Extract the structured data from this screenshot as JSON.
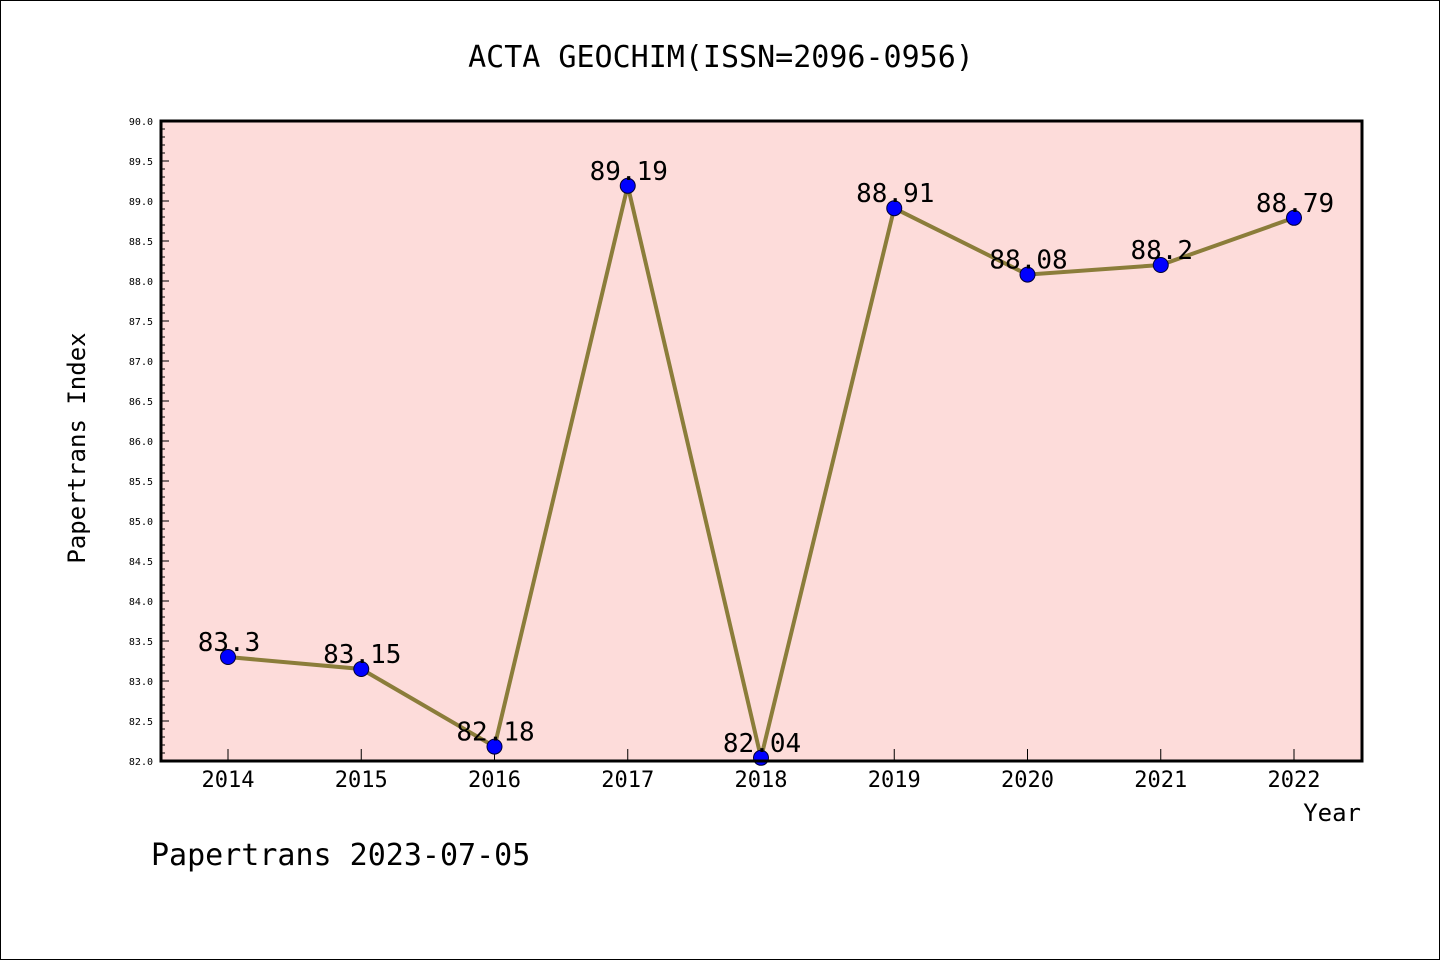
{
  "chart_data": {
    "type": "line",
    "title": "ACTA GEOCHIM(ISSN=2096-0956)",
    "xlabel": "Year",
    "ylabel": "Papertrans Index",
    "categories": [
      "2014",
      "2015",
      "2016",
      "2017",
      "2018",
      "2019",
      "2020",
      "2021",
      "2022"
    ],
    "values": [
      83.3,
      83.15,
      82.18,
      89.19,
      82.04,
      88.91,
      88.08,
      88.2,
      88.79
    ],
    "data_labels": [
      "83.3",
      "83.15",
      "82.18",
      "89.19",
      "82.04",
      "88.91",
      "88.08",
      "88.2",
      "88.79"
    ],
    "ylim": [
      82.0,
      90.0
    ],
    "y_ticks": [
      "82.0",
      "82.5",
      "83.0",
      "83.5",
      "84.0",
      "84.5",
      "85.0",
      "85.5",
      "86.0",
      "86.5",
      "87.0",
      "87.5",
      "88.0",
      "88.5",
      "89.0",
      "89.5",
      "90.0"
    ],
    "grid": false,
    "colors": {
      "plot_background": "#fddcda",
      "line": "#8b7d3a",
      "marker": "#0000ff"
    }
  },
  "footer": "Papertrans 2023-07-05"
}
